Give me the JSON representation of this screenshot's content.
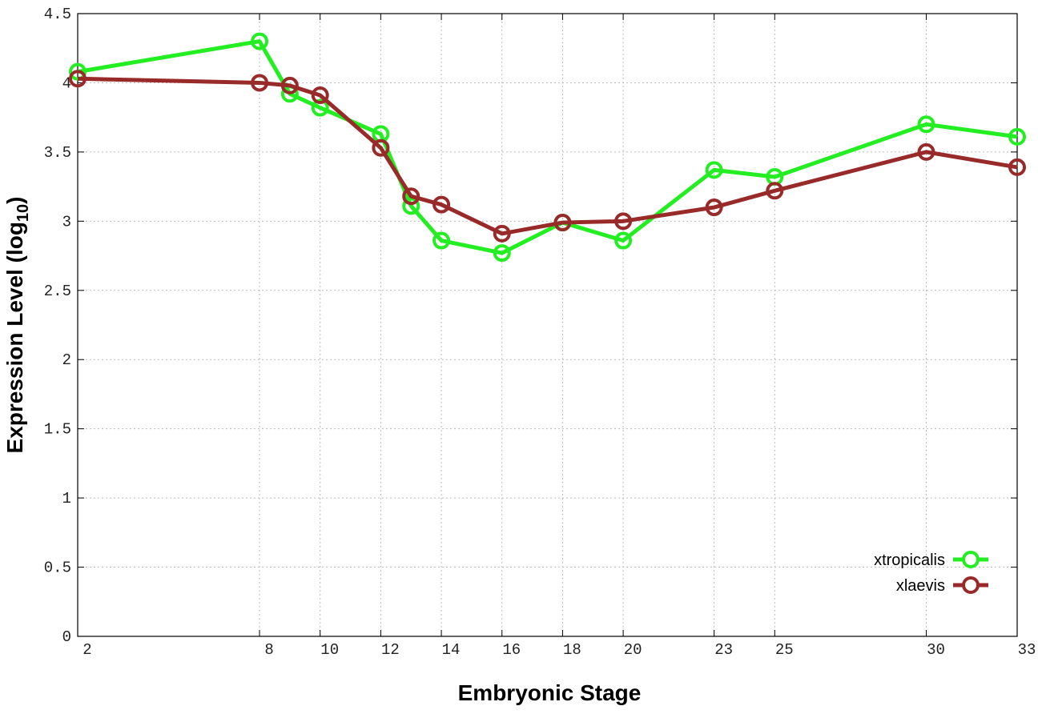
{
  "chart_data": {
    "type": "line",
    "xlabel": "Embryonic Stage",
    "ylabel": {
      "text": "Expression Level (log",
      "subscript": "10",
      "suffix": ")"
    },
    "x": [
      2,
      8,
      9,
      10,
      12,
      13,
      14,
      16,
      18,
      20,
      23,
      25,
      30,
      33
    ],
    "series": [
      {
        "name": "xtropicalis",
        "color": "#22ee22",
        "values": [
          4.08,
          4.3,
          3.92,
          3.82,
          3.63,
          3.11,
          2.86,
          2.77,
          2.99,
          2.86,
          3.37,
          3.32,
          3.7,
          3.61
        ]
      },
      {
        "name": "xlaevis",
        "color": "#992a2a",
        "values": [
          4.03,
          4.0,
          3.98,
          3.91,
          3.53,
          3.18,
          3.12,
          2.91,
          2.99,
          3.0,
          3.1,
          3.22,
          3.5,
          3.39
        ]
      }
    ],
    "xlim": [
      2,
      33
    ],
    "xticks": [
      2,
      8,
      10,
      12,
      14,
      16,
      18,
      20,
      23,
      25,
      30,
      33
    ],
    "ylim": [
      0,
      4.5
    ],
    "yticks": [
      0,
      0.5,
      1,
      1.5,
      2,
      2.5,
      3,
      3.5,
      4,
      4.5
    ],
    "grid": true,
    "legend": "lower-right"
  }
}
